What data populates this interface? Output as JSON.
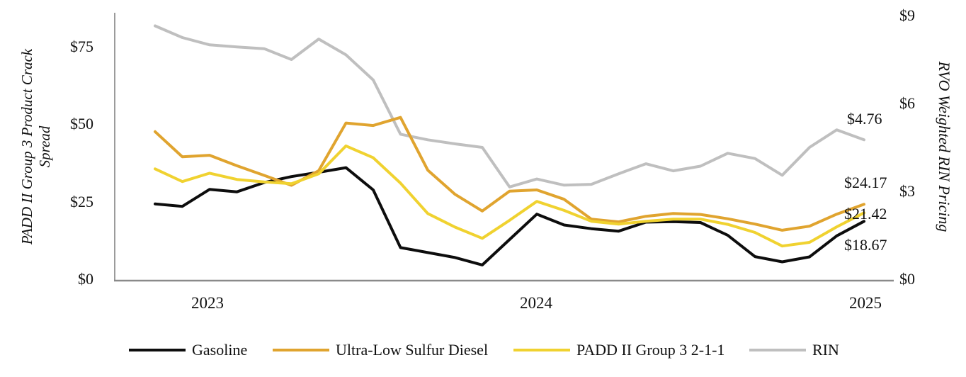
{
  "figure": {
    "left_axis": {
      "title": "PADD II Group 3 Product Crack Spread",
      "tick_labels": [
        "$75",
        "$50",
        "$25",
        "$0"
      ]
    },
    "right_axis": {
      "title": "RVO Weighted RIN Pricing",
      "tick_labels": [
        "$9",
        "$6",
        "$3",
        "$0"
      ]
    },
    "x_axis": {
      "tick_labels": [
        "2023",
        "2024",
        "2025"
      ]
    },
    "legend": [
      "Gasoline",
      "Ultra-Low Sulfur Diesel",
      "PADD II Group 3 2-1-1",
      "RIN"
    ]
  },
  "chart_data": {
    "type": "line",
    "x": {
      "interval": "monthly",
      "point_count": 27,
      "year_ticks": [
        {
          "label": "2023",
          "index": 2
        },
        {
          "label": "2024",
          "index": 14
        },
        {
          "label": "2025",
          "index": 26
        }
      ]
    },
    "left_axis": {
      "label": "PADD II Group 3 Product Crack Spread",
      "unit": "$",
      "ticks": [
        0,
        25,
        50,
        75
      ],
      "ylim": [
        0,
        75
      ]
    },
    "right_axis": {
      "label": "RVO Weighted RIN Pricing",
      "unit": "$",
      "ticks": [
        0,
        3,
        6,
        9
      ],
      "ylim": [
        0,
        9
      ]
    },
    "grid": false,
    "legend_position": "bottom",
    "series": [
      {
        "name": "Gasoline",
        "color": "#0d0d0d",
        "axis": "left",
        "values": [
          24.3,
          23.5,
          29,
          28.2,
          31.2,
          33.1,
          34.5,
          36,
          28.8,
          10.2,
          8.6,
          7,
          4.6,
          12.8,
          21,
          17.5,
          16.3,
          15.5,
          18.4,
          18.6,
          18.3,
          14.2,
          7.3,
          5.6,
          7.2,
          14,
          18.67
        ]
      },
      {
        "name": "Ultra-Low Sulfur Diesel",
        "color": "#e0a42f",
        "axis": "left",
        "values": [
          47.6,
          39.5,
          40,
          36.6,
          33.5,
          30.3,
          35,
          50.4,
          49.6,
          52.2,
          35.2,
          27.4,
          22,
          28.4,
          28.8,
          25.8,
          19.4,
          18.5,
          20.3,
          21.2,
          20.9,
          19.5,
          17.8,
          15.8,
          17.1,
          21,
          24.17
        ]
      },
      {
        "name": "PADD II Group 3 2-1-1",
        "color": "#f0d230",
        "axis": "left",
        "values": [
          35.6,
          31.5,
          34.2,
          32.2,
          31.4,
          30.8,
          34,
          43,
          39.2,
          31,
          21.2,
          16.8,
          13.2,
          19,
          25.1,
          22.2,
          18.7,
          17.8,
          18.7,
          19.4,
          19.4,
          17.7,
          15.1,
          10.7,
          11.9,
          16.9,
          21.42
        ]
      },
      {
        "name": "RIN",
        "color": "#bfbfbf",
        "axis": "right",
        "values": [
          8.65,
          8.25,
          8,
          7.93,
          7.87,
          7.5,
          8.2,
          7.66,
          6.8,
          4.95,
          4.76,
          4.62,
          4.5,
          3.15,
          3.42,
          3.21,
          3.24,
          3.6,
          3.94,
          3.7,
          3.86,
          4.3,
          4.12,
          3.55,
          4.5,
          5.1,
          4.76
        ]
      }
    ],
    "end_labels": [
      {
        "series": "RIN",
        "text": "$4.76"
      },
      {
        "series": "Ultra-Low Sulfur Diesel",
        "text": "$24.17"
      },
      {
        "series": "PADD II Group 3 2-1-1",
        "text": "$21.42"
      },
      {
        "series": "Gasoline",
        "text": "$18.67"
      }
    ],
    "draw_order": [
      "RIN",
      "Gasoline",
      "Ultra-Low Sulfur Diesel",
      "PADD II Group 3 2-1-1"
    ],
    "axis_line_color": "#909090"
  }
}
